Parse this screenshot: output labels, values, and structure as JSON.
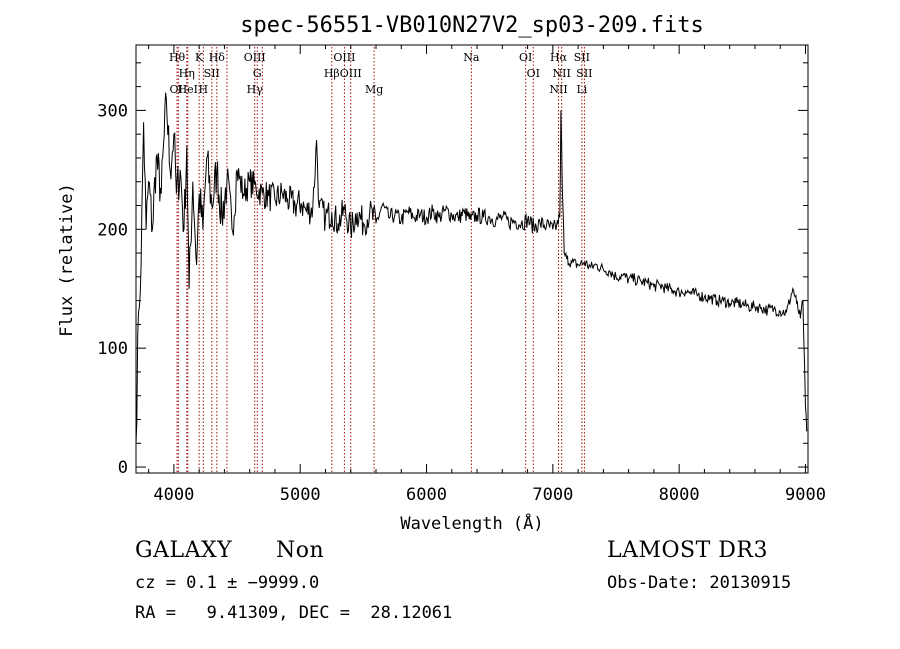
{
  "chart_data": {
    "type": "line",
    "title": "spec-56551-VB010N27V2_sp03-209.fits",
    "xlabel": "Wavelength (Å)",
    "ylabel": "Flux (relative)",
    "xlim": [
      3700,
      9020
    ],
    "ylim": [
      -5,
      355
    ],
    "xticks": [
      4000,
      5000,
      6000,
      7000,
      8000,
      9000
    ],
    "yticks": [
      0,
      100,
      200,
      300
    ],
    "grid": false,
    "series": [
      {
        "name": "spectrum",
        "x": [
          3700,
          3720,
          3740,
          3760,
          3780,
          3800,
          3830,
          3860,
          3900,
          3940,
          3970,
          4000,
          4020,
          4050,
          4080,
          4102,
          4120,
          4150,
          4180,
          4200,
          4230,
          4260,
          4300,
          4340,
          4380,
          4420,
          4460,
          4500,
          4550,
          4600,
          4650,
          4700,
          4750,
          4800,
          4860,
          4900,
          4960,
          5007,
          5050,
          5100,
          5130,
          5150,
          5200,
          5250,
          5300,
          5350,
          5400,
          5450,
          5500,
          5550,
          5600,
          5650,
          5700,
          5750,
          5800,
          5850,
          5900,
          5950,
          6000,
          6050,
          6100,
          6150,
          6200,
          6250,
          6300,
          6350,
          6400,
          6450,
          6500,
          6550,
          6600,
          6650,
          6700,
          6750,
          6800,
          6850,
          6900,
          6950,
          7000,
          7030,
          7055,
          7064,
          7075,
          7090,
          7110,
          7150,
          7200,
          7250,
          7300,
          7350,
          7400,
          7450,
          7500,
          7550,
          7600,
          7650,
          7700,
          7750,
          7800,
          7850,
          7900,
          7950,
          8000,
          8050,
          8100,
          8150,
          8200,
          8250,
          8300,
          8350,
          8400,
          8450,
          8500,
          8550,
          8600,
          8650,
          8700,
          8750,
          8800,
          8850,
          8900,
          8930,
          8960,
          8980,
          9000,
          9010
        ],
        "y": [
          20,
          130,
          170,
          290,
          200,
          240,
          200,
          260,
          230,
          310,
          250,
          280,
          230,
          250,
          200,
          270,
          150,
          240,
          170,
          230,
          200,
          260,
          220,
          250,
          210,
          240,
          200,
          250,
          230,
          240,
          235,
          230,
          228,
          225,
          230,
          225,
          220,
          222,
          215,
          218,
          275,
          218,
          210,
          214,
          205,
          216,
          200,
          214,
          205,
          214,
          205,
          220,
          210,
          212,
          208,
          215,
          210,
          212,
          210,
          215,
          210,
          216,
          212,
          210,
          214,
          208,
          212,
          210,
          210,
          208,
          210,
          206,
          207,
          205,
          208,
          202,
          205,
          203,
          200,
          203,
          210,
          300,
          235,
          180,
          175,
          172,
          170,
          172,
          168,
          170,
          166,
          165,
          160,
          161,
          158,
          158,
          156,
          155,
          152,
          153,
          150,
          149,
          147,
          148,
          146,
          145,
          143,
          142,
          140,
          140,
          138,
          138,
          137,
          135,
          135,
          134,
          132,
          133,
          131,
          130,
          150,
          138,
          125,
          140,
          50,
          30
        ]
      }
    ],
    "lines": [
      {
        "x": 4025,
        "top": "Hθ",
        "bottom": ""
      },
      {
        "x": 4035,
        "top": "",
        "bottom": "OII"
      },
      {
        "x": 4102,
        "top": "",
        "bottom": "Hη"
      },
      {
        "x": 4110,
        "top": "",
        "bottom": "HeI"
      },
      {
        "x": 4200,
        "top": "K",
        "bottom": ""
      },
      {
        "x": 4233,
        "top": "",
        "bottom": "H"
      },
      {
        "x": 4300,
        "top": "",
        "bottom": "SII"
      },
      {
        "x": 4340,
        "top": "Hδ",
        "bottom": ""
      },
      {
        "x": 4420,
        "top": "",
        "bottom": ""
      },
      {
        "x": 4640,
        "top": "OIII",
        "bottom": "Hγ"
      },
      {
        "x": 4660,
        "top": "",
        "bottom": "G"
      },
      {
        "x": 4700,
        "top": "",
        "bottom": ""
      },
      {
        "x": 5250,
        "top": "",
        "bottom": "Hβ"
      },
      {
        "x": 5350,
        "top": "OIII",
        "bottom": ""
      },
      {
        "x": 5400,
        "top": "",
        "bottom": "OIII"
      },
      {
        "x": 5585,
        "top": "",
        "bottom": "Mg"
      },
      {
        "x": 6355,
        "top": "Na",
        "bottom": ""
      },
      {
        "x": 6785,
        "top": "OI",
        "bottom": ""
      },
      {
        "x": 6845,
        "top": "",
        "bottom": "OI"
      },
      {
        "x": 7045,
        "top": "Hα",
        "bottom": "NII"
      },
      {
        "x": 7070,
        "top": "",
        "bottom": "NII"
      },
      {
        "x": 7230,
        "top": "SII",
        "bottom": "Li"
      },
      {
        "x": 7250,
        "top": "",
        "bottom": "SII"
      }
    ],
    "info": {
      "class": "GALAXY",
      "subclass": "Non",
      "survey": "LAMOST DR3",
      "cz": "cz = 0.1 ± −9999.0",
      "obs_date": "Obs-Date: 20130915",
      "coords": "RA =   9.41309, DEC =  28.12061"
    }
  }
}
